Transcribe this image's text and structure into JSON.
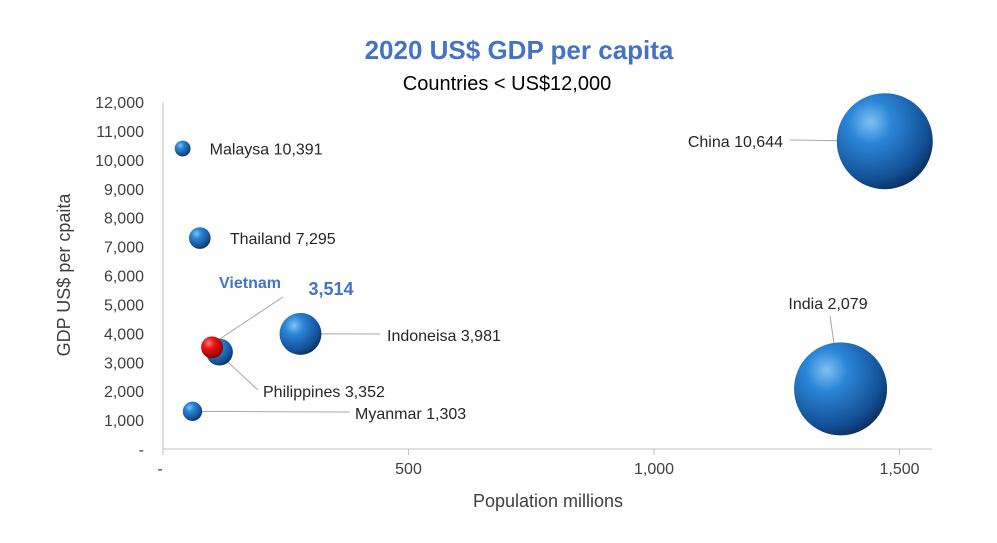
{
  "chart_data": {
    "type": "scatter",
    "title": "2020 US$ GDP per capita",
    "subtitle": "Countries < US$12,000",
    "xlabel": "Population  millions",
    "ylabel": "GDP US$ per cpaita",
    "xlim": [
      0,
      1600
    ],
    "ylim": [
      0,
      12000
    ],
    "x_ticks": [
      "-",
      "500",
      "1,000",
      "1,500"
    ],
    "y_ticks": [
      "-",
      "1,000",
      "2,000",
      "3,000",
      "4,000",
      "5,000",
      "6,000",
      "7,000",
      "8,000",
      "9,000",
      "10,000",
      "11,000",
      "12,000"
    ],
    "grid": false,
    "bubble_color": "#1f6fc4",
    "highlight_color": "#e01010",
    "title_color": "#4472c4",
    "points": [
      {
        "name": "Malaysa",
        "value_label": "10,391",
        "x": 40,
        "y": 10391
      },
      {
        "name": "Thailand",
        "value_label": "7,295",
        "x": 75,
        "y": 7295
      },
      {
        "name": "Indoneisa",
        "value_label": "3,981",
        "x": 280,
        "y": 3981
      },
      {
        "name": "Philippines",
        "value_label": "3,352",
        "x": 115,
        "y": 3352
      },
      {
        "name": "Myanmar",
        "value_label": "1,303",
        "x": 60,
        "y": 1303
      },
      {
        "name": "China",
        "value_label": "10,644",
        "x": 1470,
        "y": 10644
      },
      {
        "name": "India",
        "value_label": "2,079",
        "x": 1380,
        "y": 2079
      },
      {
        "name": "Vietnam",
        "value_label": "3,514",
        "x": 100,
        "y": 3514,
        "highlight": true
      }
    ]
  }
}
